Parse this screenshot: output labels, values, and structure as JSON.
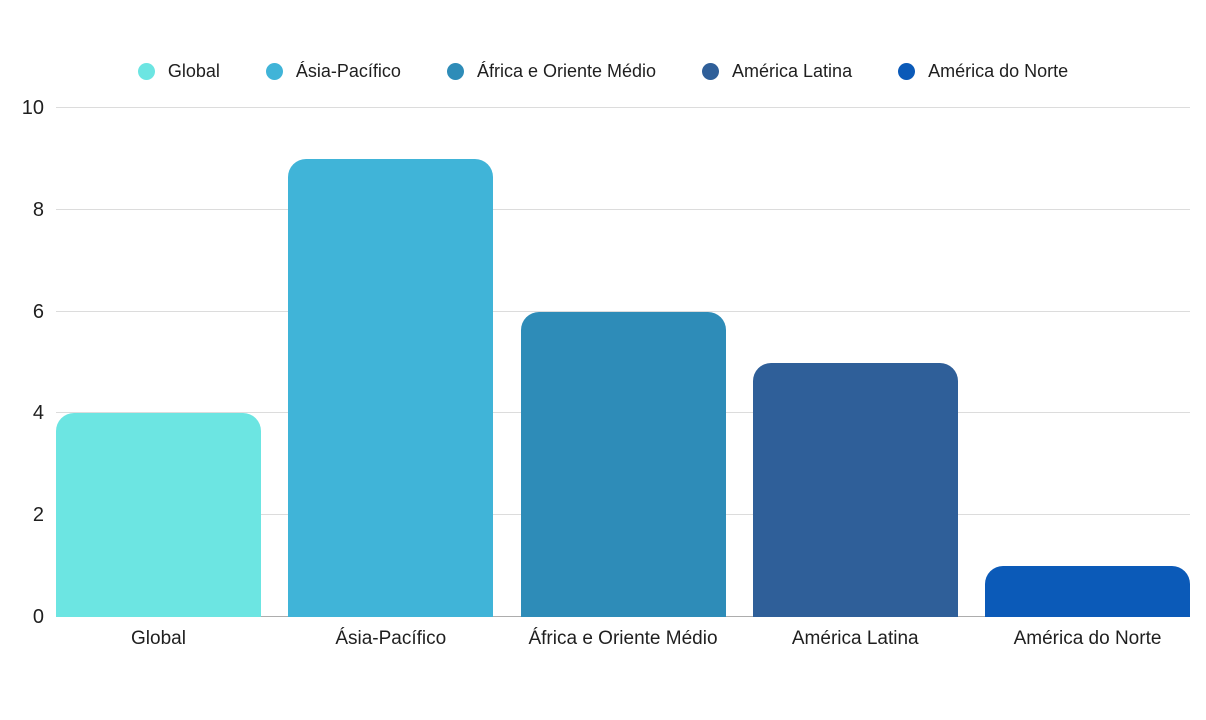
{
  "chart_data": {
    "type": "bar",
    "title": "",
    "xlabel": "",
    "ylabel": "",
    "categories": [
      "Global",
      "Ásia-Pacífico",
      "África e Oriente Médio",
      "América Latina",
      "América do Norte"
    ],
    "values": [
      4,
      9,
      6,
      5,
      1
    ],
    "bar_colors": [
      "#6CE5E2",
      "#40B4D8",
      "#2E8CB8",
      "#2F5F99",
      "#0B5AB8"
    ],
    "legend_entries": [
      "Global",
      "Ásia-Pacífico",
      "África e Oriente Médio",
      "América Latina",
      "América do Norte"
    ],
    "legend_position": "top",
    "ylim": [
      0,
      10
    ],
    "yticks": [
      0,
      2,
      4,
      6,
      8,
      10
    ],
    "grid": "horizontal"
  },
  "colors": {
    "background": "#FFFFFF",
    "grid_line": "#DCDCDC",
    "baseline": "#ADADAD",
    "text": "#1F1F1F"
  }
}
